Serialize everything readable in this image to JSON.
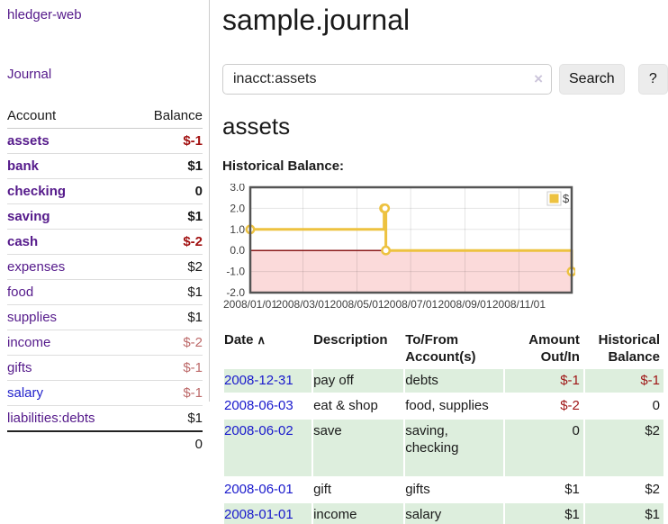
{
  "app": {
    "title": "hledger-web"
  },
  "colors": {
    "link_purple": "#551a8b",
    "link_blue": "#2222cc",
    "date_link_blue": "#1919cc",
    "negative_strong": "#a21212",
    "negative_soft": "#bd6a6a",
    "register_negative": "#9e1414",
    "row_green": "#ddeedd",
    "chart_gold": "#edc240",
    "chart_negative_fill": "#fbdada",
    "chart_zero_line": "#8b1a1a"
  },
  "sidebar": {
    "journal_link": "Journal",
    "table": {
      "headers": {
        "account": "Account",
        "balance": "Balance"
      },
      "rows": [
        {
          "name": "assets",
          "balance": "$-1"
        },
        {
          "name": "bank",
          "balance": "$1"
        },
        {
          "name": "checking",
          "balance": "0"
        },
        {
          "name": "saving",
          "balance": "$1"
        },
        {
          "name": "cash",
          "balance": "$-2"
        },
        {
          "name": "expenses",
          "balance": "$2"
        },
        {
          "name": "food",
          "balance": "$1"
        },
        {
          "name": "supplies",
          "balance": "$1"
        },
        {
          "name": "income",
          "balance": "$-2"
        },
        {
          "name": "gifts",
          "balance": "$-1"
        },
        {
          "name": "salary",
          "balance": "$-1"
        },
        {
          "name": "liabilities:debts",
          "balance": "$1"
        }
      ],
      "total": "0"
    }
  },
  "main": {
    "title": "sample.journal",
    "search": {
      "value": "inacct:assets",
      "clear_icon": "×",
      "search_button": "Search",
      "help_button": "?"
    },
    "account_heading": "assets",
    "chart_label": "Historical Balance:"
  },
  "chart_data": {
    "type": "line",
    "style": "step",
    "title": "Historical Balance",
    "grid": true,
    "legend_position": "top-right",
    "ylim": [
      -2.0,
      3.0
    ],
    "series": [
      {
        "name": "$",
        "color": "#edc240",
        "points": [
          {
            "date": "2008-01-01",
            "x": 0.0,
            "y": 1
          },
          {
            "date": "2008-06-01",
            "x": 0.4164,
            "y": 2
          },
          {
            "date": "2008-06-02",
            "x": 0.4192,
            "y": 2
          },
          {
            "date": "2008-06-03",
            "x": 0.4219,
            "y": 0
          },
          {
            "date": "2008-12-31",
            "x": 1.0,
            "y": -1
          }
        ]
      }
    ],
    "x_ticks": [
      {
        "label": "2008/01/01",
        "pos": 0.0
      },
      {
        "label": "2008/03/01",
        "pos": 0.164
      },
      {
        "label": "2008/05/01",
        "pos": 0.332
      },
      {
        "label": "2008/07/01",
        "pos": 0.499
      },
      {
        "label": "2008/09/01",
        "pos": 0.668
      },
      {
        "label": "2008/11/01",
        "pos": 0.836
      }
    ],
    "y_ticks": [
      {
        "label": "3.0",
        "value": 3
      },
      {
        "label": "2.0",
        "value": 2
      },
      {
        "label": "1.0",
        "value": 1
      },
      {
        "label": "0.0",
        "value": 0
      },
      {
        "label": "-1.0",
        "value": -1
      },
      {
        "label": "-2.0",
        "value": -2
      }
    ],
    "negative_region_fill": "#fbdada",
    "zero_line_color": "#8b1a1a"
  },
  "register": {
    "headers": {
      "date": "Date",
      "description": "Description",
      "tofrom": "To/From Account(s)",
      "amount": "Amount Out/In",
      "balance": "Historical Balance"
    },
    "rows": [
      {
        "date": "2008-12-31",
        "description": "pay off",
        "tofrom": "debts",
        "amount": "$-1",
        "balance": "$-1"
      },
      {
        "date": "2008-06-03",
        "description": "eat & shop",
        "tofrom": "food, supplies",
        "amount": "$-2",
        "balance": "0"
      },
      {
        "date": "2008-06-02",
        "description": "save",
        "tofrom": "saving,\nchecking",
        "amount": "0",
        "balance": "$2"
      },
      {
        "date": "2008-06-01",
        "description": "gift",
        "tofrom": "gifts",
        "amount": "$1",
        "balance": "$2"
      },
      {
        "date": "2008-01-01",
        "description": "income",
        "tofrom": "salary",
        "amount": "$1",
        "balance": "$1"
      }
    ]
  }
}
